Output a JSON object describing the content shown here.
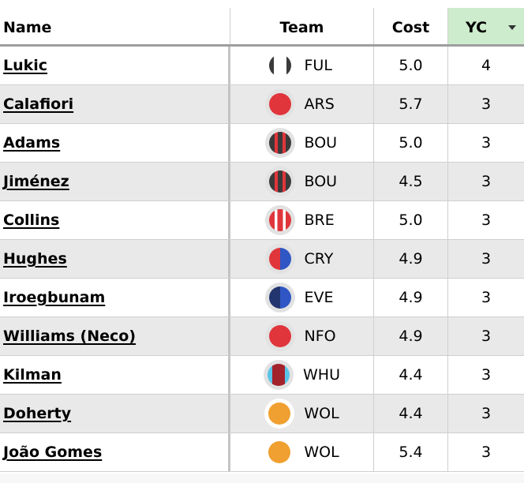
{
  "table": {
    "columns": [
      {
        "key": "name",
        "label": "Name"
      },
      {
        "key": "team",
        "label": "Team"
      },
      {
        "key": "cost",
        "label": "Cost"
      },
      {
        "key": "yc",
        "label": "YC",
        "sorted": "descending",
        "highlight_color": "#cdeccd"
      }
    ],
    "rows": [
      {
        "name": "Lukic",
        "team": "FUL",
        "cost": "5.0",
        "yc": "4",
        "kit_icon": "fulham-kit-icon"
      },
      {
        "name": "Calafiori",
        "team": "ARS",
        "cost": "5.7",
        "yc": "3",
        "kit_icon": "arsenal-kit-icon"
      },
      {
        "name": "Adams",
        "team": "BOU",
        "cost": "5.0",
        "yc": "3",
        "kit_icon": "bournemouth-kit-icon"
      },
      {
        "name": "Jiménez",
        "team": "BOU",
        "cost": "4.5",
        "yc": "3",
        "kit_icon": "bournemouth-kit-icon"
      },
      {
        "name": "Collins",
        "team": "BRE",
        "cost": "5.0",
        "yc": "3",
        "kit_icon": "brentford-kit-icon"
      },
      {
        "name": "Hughes",
        "team": "CRY",
        "cost": "4.9",
        "yc": "3",
        "kit_icon": "crystal-palace-kit-icon"
      },
      {
        "name": "Iroegbunam",
        "team": "EVE",
        "cost": "4.9",
        "yc": "3",
        "kit_icon": "everton-kit-icon"
      },
      {
        "name": "Williams (Neco)",
        "team": "NFO",
        "cost": "4.9",
        "yc": "3",
        "kit_icon": "nottingham-forest-kit-icon"
      },
      {
        "name": "Kilman",
        "team": "WHU",
        "cost": "4.4",
        "yc": "3",
        "kit_icon": "west-ham-kit-icon"
      },
      {
        "name": "Doherty",
        "team": "WOL",
        "cost": "4.4",
        "yc": "3",
        "kit_icon": "wolves-kit-icon"
      },
      {
        "name": "João Gomes",
        "team": "WOL",
        "cost": "5.4",
        "yc": "3",
        "kit_icon": "wolves-kit-icon"
      }
    ]
  },
  "colors": {
    "alt_row": "#e9e9e9",
    "header_sorted": "#cdeccd",
    "red": "#e0353b",
    "dark": "#3a3a3a",
    "blue": "#2f56c4",
    "navy": "#22356f",
    "claret": "#a3232c",
    "sky": "#5ac4e8",
    "amber": "#f0a030"
  }
}
